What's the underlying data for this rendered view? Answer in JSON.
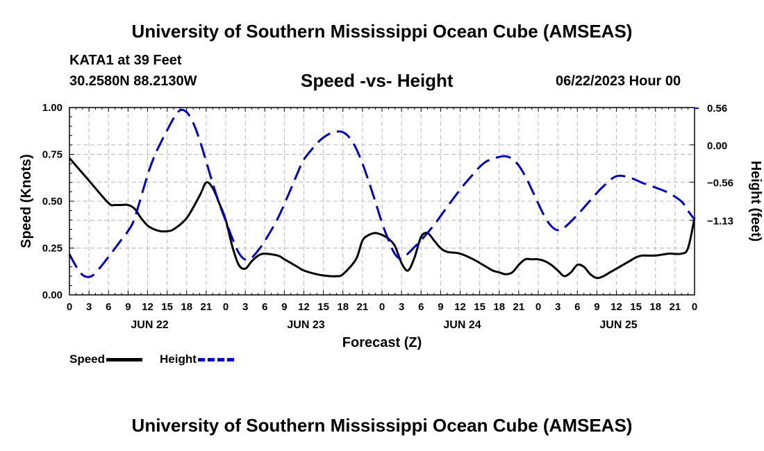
{
  "header": {
    "title": "University of Southern Mississippi Ocean Cube (AMSEAS)",
    "station": "KATA1 at 39 Feet",
    "coordinates": "30.2580N  88.2130W",
    "subtitle": "Speed -vs- Height",
    "datetime": "06/22/2023 Hour 00"
  },
  "footer": {
    "title": "University of Southern Mississippi Ocean Cube (AMSEAS)"
  },
  "legend": {
    "speed_label": "Speed",
    "height_label": "Height"
  },
  "colors": {
    "speed": "#000000",
    "height": "#0000cc",
    "grid": "#b8b8b8"
  },
  "chart_data": {
    "type": "line",
    "xlabel": "Forecast (Z)",
    "ylabel": "Speed (Knots)",
    "y2label": "Height (feet)",
    "xlim": [
      0,
      96
    ],
    "ylim": [
      0,
      1
    ],
    "y2lim": [
      -2.25,
      0.56
    ],
    "x_tick_labels": [
      "0",
      "3",
      "6",
      "9",
      "12",
      "15",
      "18",
      "21",
      "0",
      "3",
      "6",
      "9",
      "12",
      "15",
      "18",
      "21",
      "0",
      "3",
      "6",
      "9",
      "12",
      "15",
      "18",
      "21",
      "0",
      "3",
      "6",
      "9",
      "12",
      "15",
      "18",
      "21",
      "0"
    ],
    "x_tick_hours": [
      0,
      3,
      6,
      9,
      12,
      15,
      18,
      21,
      24,
      27,
      30,
      33,
      36,
      39,
      42,
      45,
      48,
      51,
      54,
      57,
      60,
      63,
      66,
      69,
      72,
      75,
      78,
      81,
      84,
      87,
      90,
      93,
      96
    ],
    "date_labels": [
      {
        "label": "JUN 22",
        "hour": 12
      },
      {
        "label": "JUN 23",
        "hour": 36
      },
      {
        "label": "JUN 24",
        "hour": 60
      },
      {
        "label": "JUN 25",
        "hour": 84
      }
    ],
    "y_ticks": [
      0,
      0.25,
      0.5,
      0.75,
      1.0
    ],
    "y_tick_labels": [
      "0.00",
      "0.25",
      "0.50",
      "0.75",
      "1.00"
    ],
    "y2_ticks": [
      -1.13,
      -0.56,
      0.0,
      0.56
    ],
    "y2_tick_labels": [
      "−1.13",
      "−0.56",
      "0.00",
      "0.56"
    ],
    "grid": true,
    "series": [
      {
        "name": "Speed",
        "axis": "left",
        "style": "solid",
        "x": [
          0,
          3,
          6,
          7,
          8,
          9,
          10,
          11,
          12,
          13,
          14,
          15,
          16,
          18,
          20,
          21,
          22,
          23,
          24,
          25,
          26,
          27,
          28,
          29,
          30,
          32,
          33,
          35,
          36,
          38,
          40,
          41,
          42,
          44,
          45,
          46,
          47,
          48,
          49,
          50,
          51,
          52,
          53,
          54,
          55,
          56,
          57,
          58,
          60,
          62,
          64,
          65,
          66,
          67,
          68,
          69,
          70,
          71,
          72,
          73,
          74,
          75,
          76,
          77,
          78,
          79,
          80,
          81,
          82,
          83,
          84,
          86,
          87,
          88,
          90,
          92,
          94,
          95,
          96
        ],
        "values": [
          0.73,
          0.61,
          0.49,
          0.48,
          0.48,
          0.48,
          0.46,
          0.41,
          0.37,
          0.35,
          0.34,
          0.34,
          0.35,
          0.41,
          0.53,
          0.6,
          0.57,
          0.49,
          0.4,
          0.26,
          0.16,
          0.14,
          0.18,
          0.21,
          0.22,
          0.21,
          0.19,
          0.15,
          0.13,
          0.11,
          0.1,
          0.1,
          0.11,
          0.19,
          0.29,
          0.32,
          0.33,
          0.32,
          0.3,
          0.26,
          0.17,
          0.13,
          0.2,
          0.31,
          0.33,
          0.29,
          0.25,
          0.23,
          0.22,
          0.19,
          0.15,
          0.13,
          0.12,
          0.11,
          0.12,
          0.16,
          0.19,
          0.19,
          0.19,
          0.18,
          0.16,
          0.13,
          0.1,
          0.12,
          0.16,
          0.15,
          0.11,
          0.09,
          0.1,
          0.12,
          0.14,
          0.18,
          0.2,
          0.21,
          0.21,
          0.22,
          0.22,
          0.25,
          0.41
        ]
      },
      {
        "name": "Height",
        "axis": "right",
        "style": "dashed",
        "x": [
          0,
          1,
          2,
          3,
          4,
          6,
          8,
          9,
          10,
          12,
          13,
          14,
          15,
          16,
          17,
          18,
          19,
          20,
          21,
          22,
          23,
          24,
          25,
          26,
          27,
          28,
          29,
          30,
          32,
          34,
          35,
          36,
          38,
          39,
          40,
          41,
          42,
          43,
          44,
          45,
          46,
          47,
          48,
          49,
          50,
          51,
          52,
          53,
          54,
          56,
          58,
          60,
          61,
          62,
          63,
          64,
          65,
          66,
          67,
          68,
          69,
          70,
          71,
          72,
          73,
          74,
          75,
          76,
          78,
          80,
          82,
          84,
          86,
          88,
          90,
          92,
          94,
          95,
          96
        ],
        "values": [
          -1.64,
          -1.82,
          -1.95,
          -1.98,
          -1.92,
          -1.68,
          -1.42,
          -1.29,
          -1.1,
          -0.45,
          -0.18,
          0.03,
          0.22,
          0.4,
          0.52,
          0.49,
          0.33,
          0.07,
          -0.25,
          -0.58,
          -0.88,
          -1.14,
          -1.4,
          -1.62,
          -1.72,
          -1.69,
          -1.58,
          -1.44,
          -1.1,
          -0.66,
          -0.43,
          -0.22,
          0.02,
          0.11,
          0.17,
          0.2,
          0.19,
          0.11,
          -0.05,
          -0.28,
          -0.56,
          -0.86,
          -1.17,
          -1.43,
          -1.64,
          -1.71,
          -1.63,
          -1.53,
          -1.43,
          -1.2,
          -0.93,
          -0.67,
          -0.55,
          -0.44,
          -0.33,
          -0.25,
          -0.21,
          -0.18,
          -0.17,
          -0.21,
          -0.31,
          -0.47,
          -0.67,
          -0.88,
          -1.08,
          -1.22,
          -1.28,
          -1.24,
          -1.05,
          -0.83,
          -0.62,
          -0.47,
          -0.49,
          -0.57,
          -0.64,
          -0.72,
          -0.85,
          -0.99,
          -1.12
        ]
      }
    ]
  }
}
